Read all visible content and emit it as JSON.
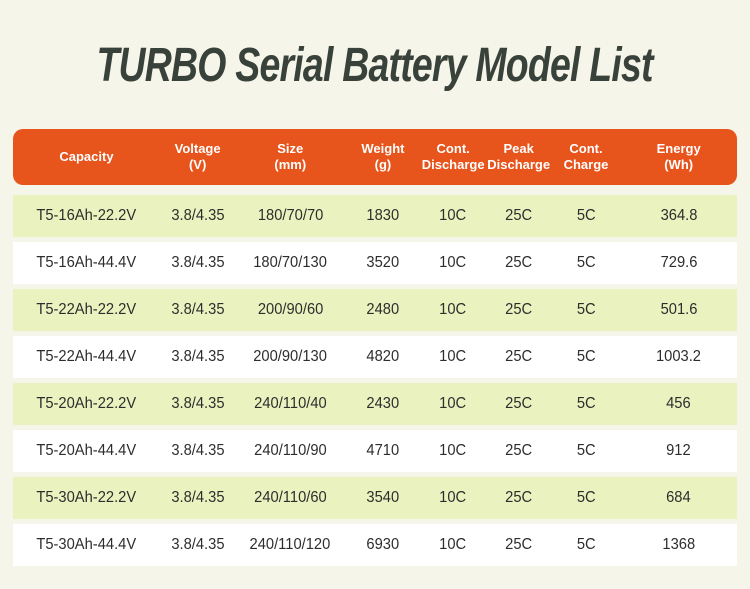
{
  "title": "TURBO Serial Battery Model List",
  "colors": {
    "page_background": "#F6F5EA",
    "header_background": "#E7541C",
    "row_highlight": "#EAF3BF",
    "row_plain": "#FFFFFF",
    "title_text": "#39423A",
    "header_text": "#FFFFFF",
    "body_text": "#2D2D2D"
  },
  "header": {
    "columns": [
      {
        "line1": "Capacity",
        "line2": ""
      },
      {
        "line1": "Voltage",
        "line2": "(V)"
      },
      {
        "line1": "Size",
        "line2": "(mm)"
      },
      {
        "line1": "Weight",
        "line2": "(g)"
      },
      {
        "line1": "Cont.",
        "line2": "Discharge"
      },
      {
        "line1": "Peak",
        "line2": "Discharge"
      },
      {
        "line1": "Cont.",
        "line2": "Charge"
      },
      {
        "line1": "Energy",
        "line2": "(Wh)"
      }
    ]
  },
  "chart_data": {
    "type": "table",
    "title": "TURBO Serial Battery Model List",
    "columns": [
      "Capacity",
      "Voltage (V)",
      "Size (mm)",
      "Weight (g)",
      "Cont. Discharge",
      "Peak Discharge",
      "Cont. Charge",
      "Energy (Wh)"
    ],
    "rows": [
      [
        "T5-16Ah-22.2V",
        "3.8/4.35",
        "180/70/70",
        "1830",
        "10C",
        "25C",
        "5C",
        "364.8"
      ],
      [
        "T5-16Ah-44.4V",
        "3.8/4.35",
        "180/70/130",
        "3520",
        "10C",
        "25C",
        "5C",
        "729.6"
      ],
      [
        "T5-22Ah-22.2V",
        "3.8/4.35",
        "200/90/60",
        "2480",
        "10C",
        "25C",
        "5C",
        "501.6"
      ],
      [
        "T5-22Ah-44.4V",
        "3.8/4.35",
        "200/90/130",
        "4820",
        "10C",
        "25C",
        "5C",
        "1003.2"
      ],
      [
        "T5-20Ah-22.2V",
        "3.8/4.35",
        "240/110/40",
        "2430",
        "10C",
        "25C",
        "5C",
        "456"
      ],
      [
        "T5-20Ah-44.4V",
        "3.8/4.35",
        "240/110/90",
        "4710",
        "10C",
        "25C",
        "5C",
        "912"
      ],
      [
        "T5-30Ah-22.2V",
        "3.8/4.35",
        "240/110/60",
        "3540",
        "10C",
        "25C",
        "5C",
        "684"
      ],
      [
        "T5-30Ah-44.4V",
        "3.8/4.35",
        "240/110/120",
        "6930",
        "10C",
        "25C",
        "5C",
        "1368"
      ]
    ],
    "layout": {
      "row_striping": "odd rows pale green, even rows white",
      "header_style": "orange rounded bar, white text",
      "alignment": "all columns centered"
    }
  }
}
